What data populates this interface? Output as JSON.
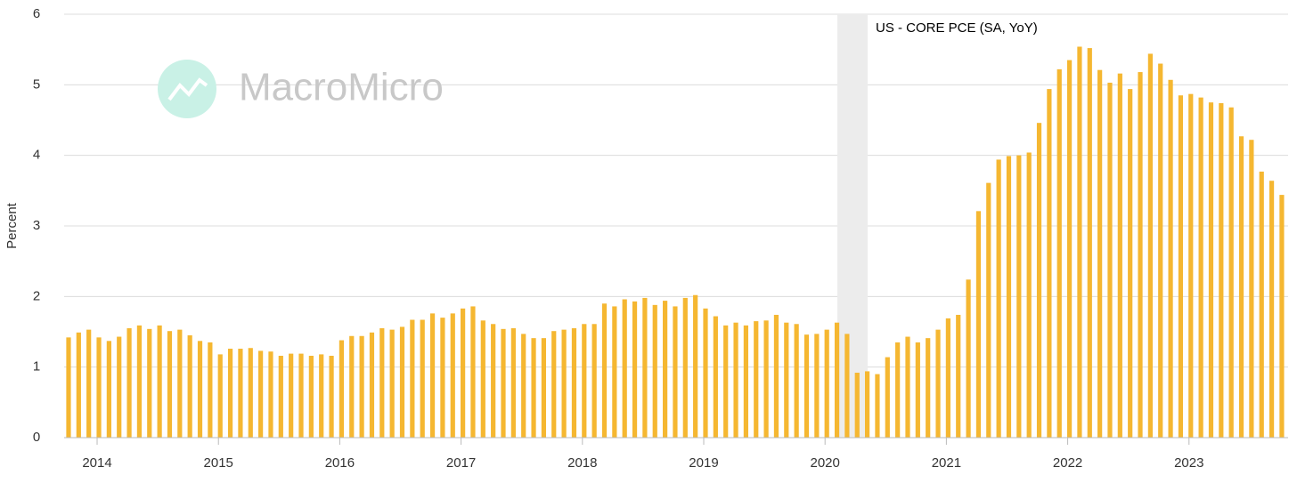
{
  "chart_data": {
    "type": "bar",
    "series": [
      {
        "name": "US - CORE PCE (SA, YoY)",
        "color": "#f5b731",
        "values": [
          1.42,
          1.49,
          1.53,
          1.42,
          1.37,
          1.43,
          1.55,
          1.59,
          1.54,
          1.59,
          1.51,
          1.53,
          1.45,
          1.37,
          1.35,
          1.18,
          1.26,
          1.26,
          1.27,
          1.23,
          1.22,
          1.16,
          1.19,
          1.19,
          1.16,
          1.18,
          1.16,
          1.38,
          1.44,
          1.44,
          1.49,
          1.55,
          1.53,
          1.57,
          1.67,
          1.67,
          1.76,
          1.7,
          1.76,
          1.83,
          1.86,
          1.66,
          1.61,
          1.54,
          1.55,
          1.47,
          1.41,
          1.41,
          1.51,
          1.53,
          1.55,
          1.61,
          1.61,
          1.9,
          1.86,
          1.96,
          1.93,
          1.98,
          1.88,
          1.94,
          1.86,
          1.98,
          2.02,
          1.83,
          1.72,
          1.59,
          1.63,
          1.59,
          1.65,
          1.66,
          1.74,
          1.63,
          1.61,
          1.46,
          1.47,
          1.53,
          1.63,
          1.47,
          0.92,
          0.94,
          0.9,
          1.14,
          1.35,
          1.43,
          1.35,
          1.41,
          1.53,
          1.69,
          1.74,
          2.24,
          3.21,
          3.61,
          3.94,
          3.99,
          4.0,
          4.04,
          4.46,
          4.94,
          5.22,
          5.35,
          5.54,
          5.52,
          5.21,
          5.03,
          5.16,
          4.94,
          5.18,
          5.44,
          5.3,
          5.07,
          4.85,
          4.87,
          4.82,
          4.75,
          4.74,
          4.68,
          4.27,
          4.22,
          3.77,
          3.64,
          3.44
        ]
      }
    ],
    "categories": [
      null,
      null,
      null,
      "2014",
      null,
      null,
      null,
      null,
      null,
      null,
      null,
      null,
      null,
      null,
      null,
      "2015",
      null,
      null,
      null,
      null,
      null,
      null,
      null,
      null,
      null,
      null,
      null,
      "2016",
      null,
      null,
      null,
      null,
      null,
      null,
      null,
      null,
      null,
      null,
      null,
      "2017",
      null,
      null,
      null,
      null,
      null,
      null,
      null,
      null,
      null,
      null,
      null,
      "2018",
      null,
      null,
      null,
      null,
      null,
      null,
      null,
      null,
      null,
      null,
      null,
      "2019",
      null,
      null,
      null,
      null,
      null,
      null,
      null,
      null,
      null,
      null,
      null,
      "2020",
      null,
      null,
      null,
      null,
      null,
      null,
      null,
      null,
      null,
      null,
      null,
      "2021",
      null,
      null,
      null,
      null,
      null,
      null,
      null,
      null,
      null,
      null,
      null,
      "2022",
      null,
      null,
      null,
      null,
      null,
      null,
      null,
      null,
      null,
      null,
      null,
      "2023",
      null,
      null,
      null,
      null,
      null,
      null,
      null,
      null,
      null
    ],
    "y_label": "Percent",
    "watermark": "MacroMicro",
    "ylim": [
      0,
      6
    ],
    "yticks": [
      0,
      1,
      2,
      3,
      4,
      5,
      6
    ],
    "grid": true
  }
}
